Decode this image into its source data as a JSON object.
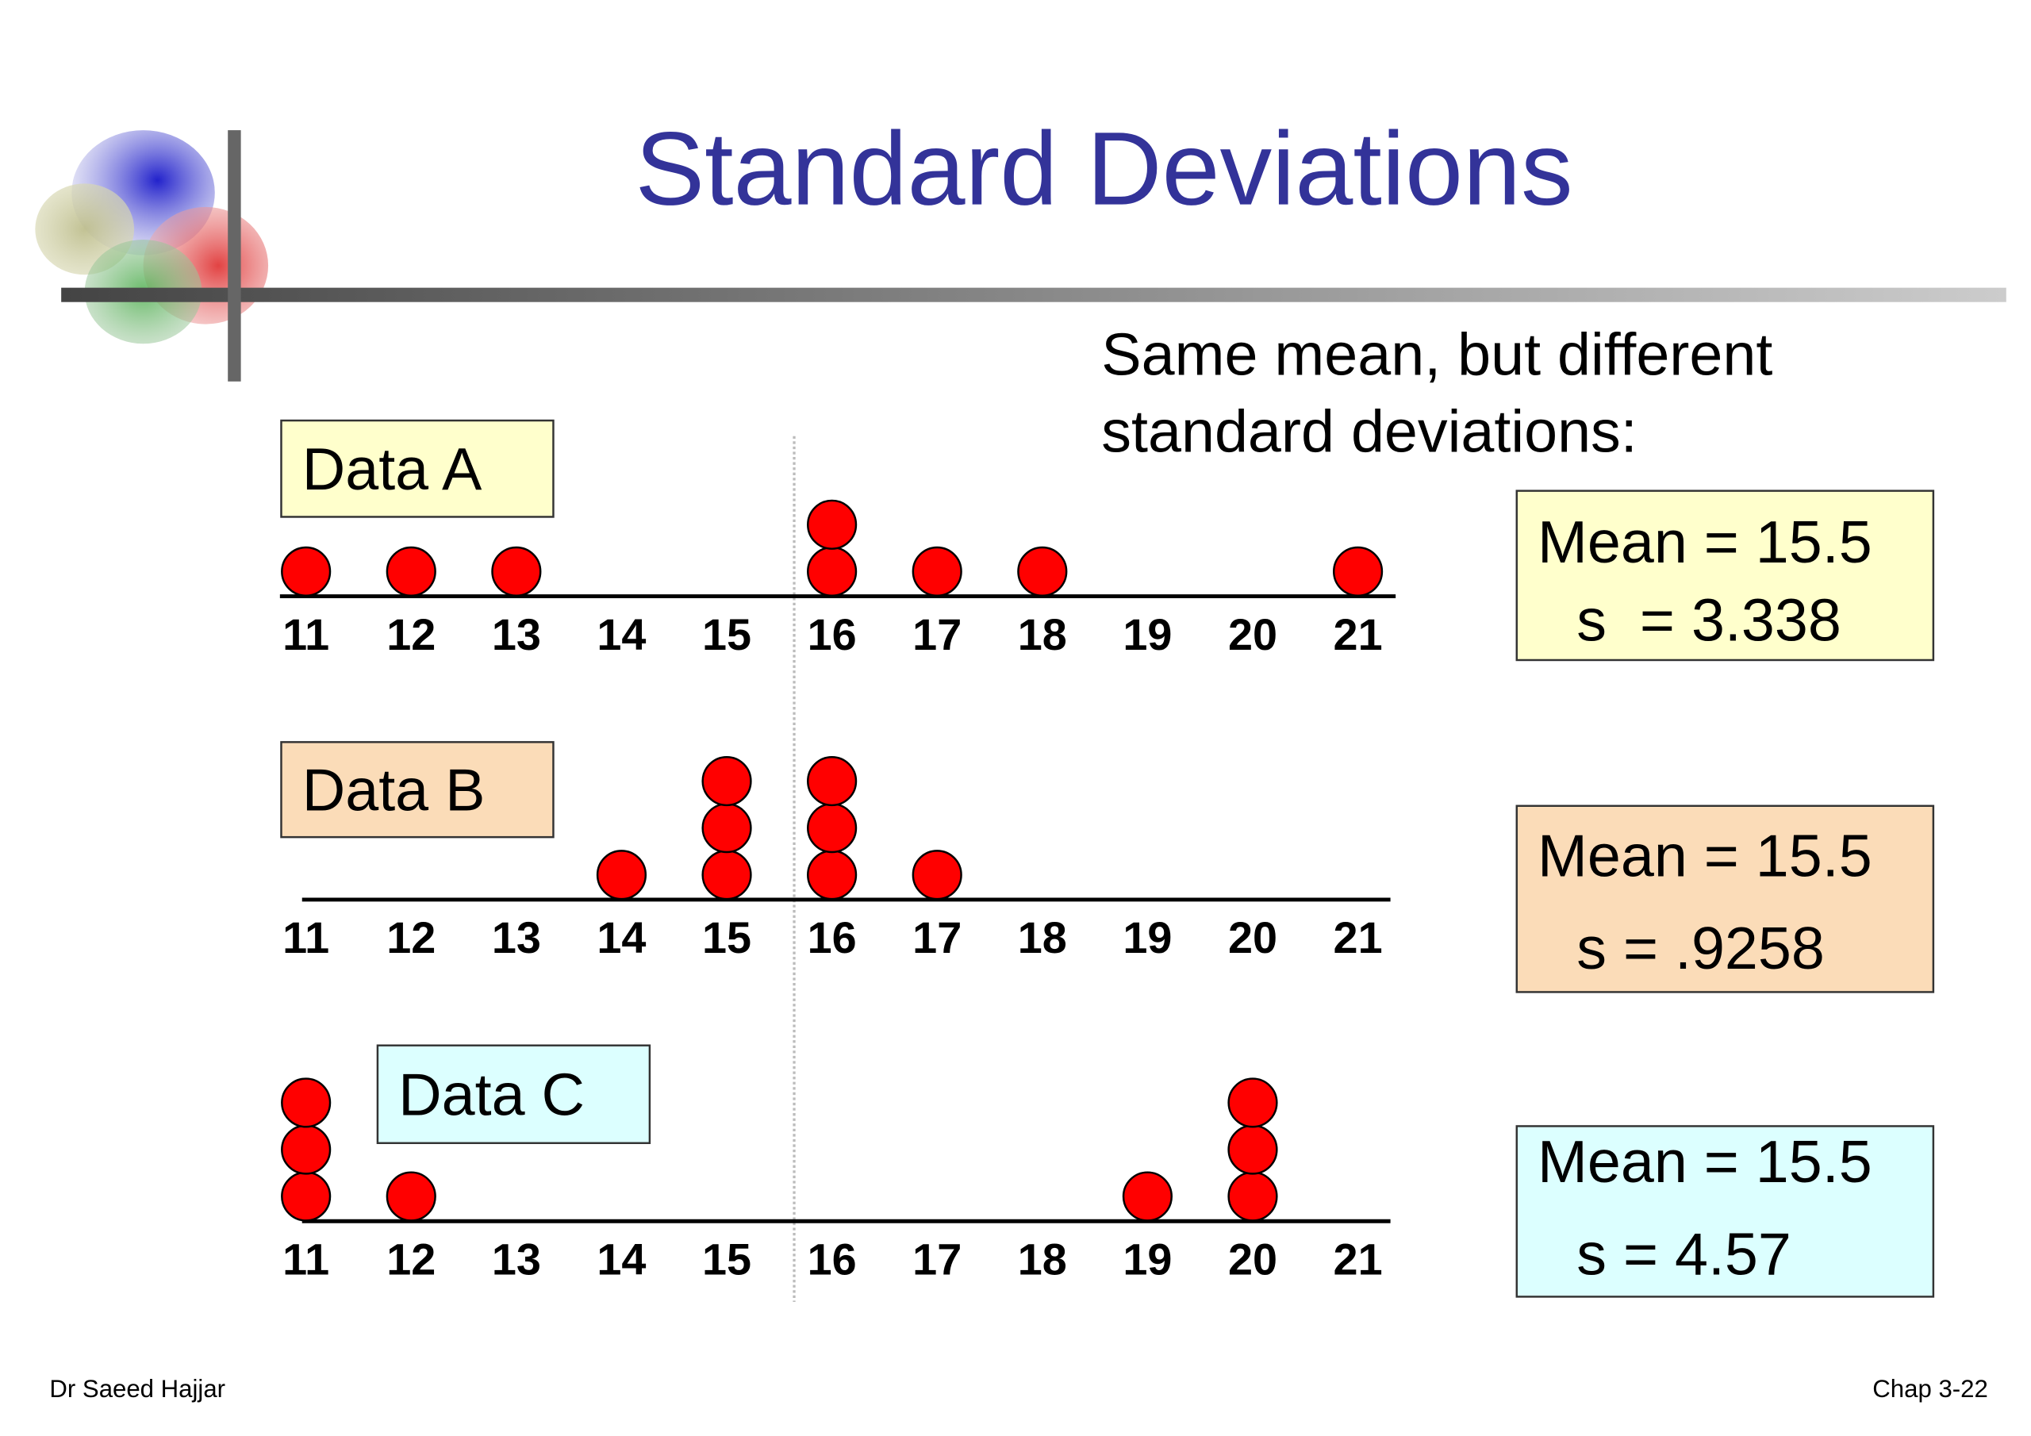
{
  "title": "Standard Deviations",
  "annotation": [
    "Same mean, but different",
    "standard deviations:"
  ],
  "footer": {
    "left": "Dr Saeed Hajjar",
    "right": "Chap 3-22"
  },
  "chart_data": [
    {
      "type": "dot",
      "label": "Data A",
      "label_color": "#ffffcc",
      "stats": [
        "Mean = 15.5",
        "s  = 3.338"
      ],
      "stats_color": "#ffffcc",
      "values": [
        11,
        12,
        13,
        16,
        16,
        17,
        18,
        21
      ],
      "color": "#ff0000",
      "xlim": [
        10.75,
        21.35
      ],
      "xticks": [
        11,
        12,
        13,
        14,
        15,
        16,
        17,
        18,
        19,
        20,
        21
      ]
    },
    {
      "type": "dot",
      "label": "Data B",
      "label_color": "#fbdcb8",
      "stats": [
        "Mean = 15.5",
        "s = .9258"
      ],
      "stats_color": "#fbdcb8",
      "values": [
        14,
        15,
        15,
        15,
        16,
        16,
        16,
        17
      ],
      "color": "#ff0000",
      "xlim": [
        10.75,
        21.35
      ],
      "xticks": [
        11,
        12,
        13,
        14,
        15,
        16,
        17,
        18,
        19,
        20,
        21
      ]
    },
    {
      "type": "dot",
      "label": "Data C",
      "label_color": "#dcffff",
      "stats": [
        "Mean = 15.5",
        "s = 4.57"
      ],
      "stats_color": "#dcffff",
      "values": [
        11,
        11,
        11,
        12,
        19,
        20,
        20,
        20
      ],
      "color": "#ff0000",
      "xlim": [
        10.75,
        21.35
      ],
      "xticks": [
        11,
        12,
        13,
        14,
        15,
        16,
        17,
        18,
        19,
        20,
        21
      ]
    }
  ]
}
